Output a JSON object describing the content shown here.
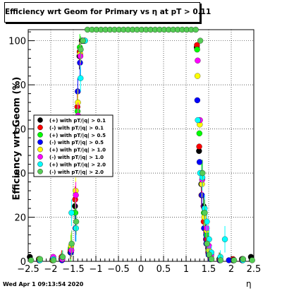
{
  "chart_data": {
    "type": "scatter",
    "title": "Efficiency wrt Geom for Primary vs   η at pT > 0.11",
    "xlabel": "η",
    "ylabel": "Efficiency wrt Geom (%)",
    "xlim": [
      -2.5,
      2.5
    ],
    "ylim": [
      0,
      105
    ],
    "xticks": [
      -2.5,
      -2,
      -1.5,
      -1,
      -0.5,
      0,
      0.5,
      1,
      1.5,
      2,
      2.5
    ],
    "yticks": [
      0,
      20,
      40,
      60,
      80,
      100
    ],
    "xtick_labels": [
      "−2.5",
      "−2",
      "−1.5",
      "−1",
      "−0.5",
      "0",
      "0.5",
      "1",
      "1.5",
      "2",
      "2.5"
    ],
    "ytick_labels": [
      "0",
      "20",
      "40",
      "60",
      "80",
      "100"
    ],
    "grid": true,
    "legend_position": "left-middle",
    "footer": "Wed Apr  1 09:13:54 2020",
    "series": [
      {
        "name": "(+) with pT/|q| > 0.1",
        "color": "#000000",
        "x": [
          -2.45,
          -2.25,
          -1.95,
          -1.75,
          -1.55,
          -1.45,
          -1.4,
          -1.35,
          -1.3,
          -1.25,
          1.25,
          1.3,
          1.35,
          1.4,
          1.45,
          1.5,
          1.55,
          1.75,
          2.05,
          2.25,
          2.45
        ],
        "y": [
          2,
          1,
          0.5,
          1,
          4,
          25,
          65,
          93,
          100,
          100,
          97,
          50,
          35,
          25,
          15,
          6,
          2,
          1,
          0.5,
          1,
          2
        ]
      },
      {
        "name": "(-) with pT/|q| > 0.1",
        "color": "#ff0000",
        "x": [
          -2.25,
          -1.95,
          -1.75,
          -1.55,
          -1.45,
          -1.4,
          -1.35,
          -1.3,
          -1.25,
          1.25,
          1.3,
          1.35,
          1.4,
          1.45,
          1.5,
          1.55,
          1.75,
          2.05,
          2.25
        ],
        "y": [
          0.5,
          1,
          2,
          5,
          28,
          70,
          95,
          100,
          100,
          98,
          52,
          30,
          18,
          10,
          4,
          1,
          0.5,
          1,
          0.5
        ]
      },
      {
        "name": "(+) with pT/|q| > 0.5",
        "color": "#00ff00",
        "x": [
          -2.25,
          -1.95,
          -1.75,
          -1.55,
          -1.45,
          -1.4,
          -1.35,
          -1.3,
          -1.25,
          1.25,
          1.3,
          1.35,
          1.4,
          1.45,
          1.5,
          1.55,
          1.75,
          2.05,
          2.25
        ],
        "y": [
          1,
          0.5,
          1,
          6,
          22,
          68,
          97,
          100,
          100,
          96,
          58,
          40,
          22,
          12,
          5,
          2,
          1,
          0.5,
          1
        ]
      },
      {
        "name": "(-) with pT/|q| > 0.5",
        "color": "#0000ff",
        "x": [
          -2.25,
          -1.95,
          -1.75,
          -1.55,
          -1.45,
          -1.4,
          -1.35,
          -1.3,
          -1.25,
          1.25,
          1.3,
          1.35,
          1.4,
          1.45,
          1.5,
          1.55,
          1.75,
          1.95,
          2.25
        ],
        "y": [
          0.5,
          1,
          0.5,
          4,
          15,
          77,
          90,
          100,
          100,
          73,
          45,
          30,
          15,
          8,
          3,
          1,
          0.5,
          0.5,
          0.5
        ]
      },
      {
        "name": "(+) with pT/|q| > 1.0",
        "color": "#ffff00",
        "x": [
          -2.25,
          -1.95,
          -1.75,
          -1.55,
          -1.45,
          -1.4,
          -1.35,
          -1.3,
          -1.25,
          1.25,
          1.3,
          1.35,
          1.4,
          1.45,
          1.5,
          1.55,
          1.75,
          2.05,
          2.25
        ],
        "y": [
          1,
          0.5,
          1,
          7,
          32,
          72,
          94,
          100,
          100,
          84,
          62,
          35,
          20,
          14,
          5,
          2,
          1,
          0.5,
          1
        ]
      },
      {
        "name": "(-) with pT/|q| > 1.0",
        "color": "#ff00ff",
        "x": [
          -2.25,
          -1.95,
          -1.75,
          -1.55,
          -1.45,
          -1.4,
          -1.35,
          -1.3,
          -1.25,
          1.25,
          1.3,
          1.35,
          1.4,
          1.45,
          1.5,
          1.55,
          1.75,
          2.05,
          2.25
        ],
        "y": [
          0.5,
          2,
          1,
          5,
          30,
          66,
          93,
          100,
          100,
          91,
          64,
          37,
          24,
          15,
          7,
          3,
          1,
          0.5,
          1
        ]
      },
      {
        "name": "(+) with pT/|q| > 2.0",
        "color": "#00ffff",
        "x": [
          -2.25,
          -1.95,
          -1.75,
          -1.55,
          -1.45,
          -1.4,
          -1.35,
          -1.3,
          -1.25,
          1.25,
          1.3,
          1.35,
          1.4,
          1.45,
          1.5,
          1.55,
          1.75,
          1.85,
          2.05,
          2.25
        ],
        "y": [
          0.5,
          1,
          2,
          22,
          15,
          50,
          83,
          100,
          100,
          64,
          40,
          38,
          24,
          18,
          10,
          4,
          2,
          10,
          0.5,
          0.5
        ]
      },
      {
        "name": "(-) with pT/|q| > 2.0",
        "color": "#55cc55",
        "x": [
          -2.45,
          -2.25,
          -1.95,
          -1.75,
          -1.55,
          -1.45,
          -1.4,
          -1.35,
          -1.3,
          -1.2,
          -1.1,
          -1.0,
          -0.9,
          -0.8,
          -0.7,
          -0.6,
          -0.5,
          -0.4,
          -0.3,
          -0.2,
          -0.1,
          0.0,
          0.1,
          0.2,
          0.3,
          0.4,
          0.5,
          0.6,
          0.7,
          0.8,
          0.9,
          1.0,
          1.1,
          1.2,
          1.3,
          1.35,
          1.4,
          1.45,
          1.5,
          1.55,
          1.75,
          2.05,
          2.25,
          2.45
        ],
        "y": [
          0.5,
          1,
          0.5,
          2,
          8,
          18,
          60,
          96,
          100,
          105,
          105,
          105,
          105,
          105,
          105,
          105,
          105,
          105,
          105,
          105,
          105,
          105,
          105,
          105,
          105,
          105,
          105,
          105,
          105,
          105,
          105,
          105,
          105,
          105,
          100,
          40,
          22,
          8,
          3,
          1,
          0.5,
          0.5,
          1,
          0.5
        ]
      }
    ]
  }
}
